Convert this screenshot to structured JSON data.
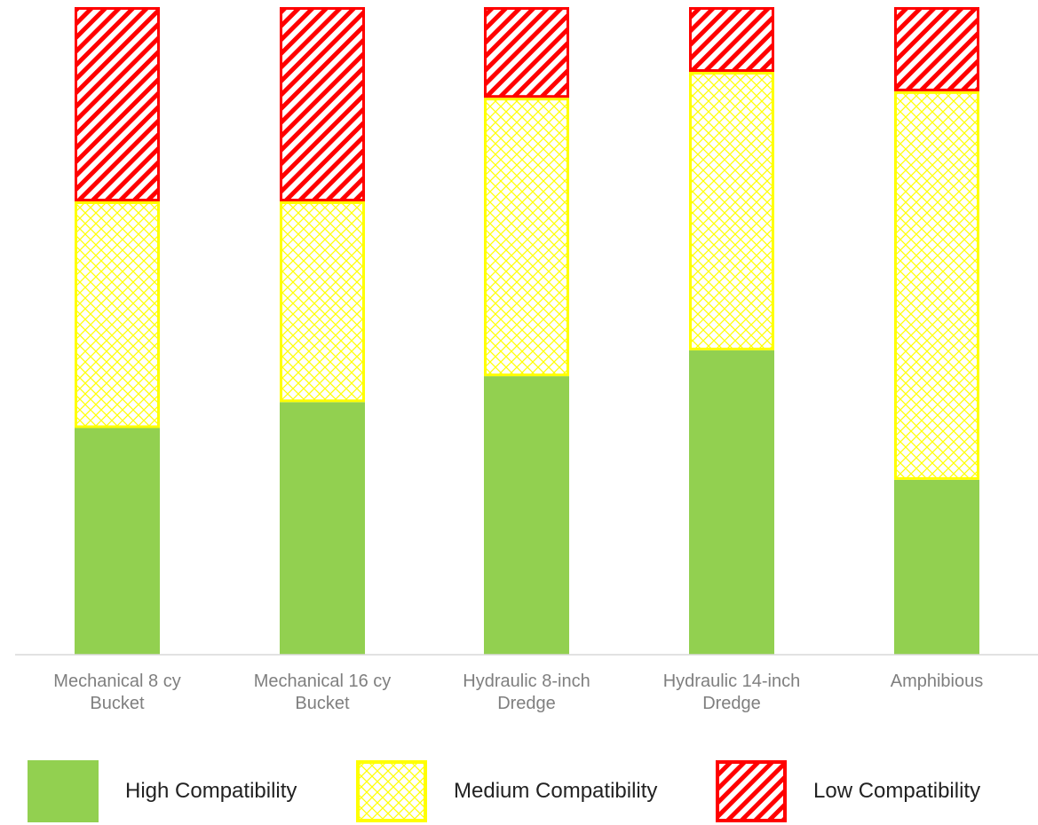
{
  "chart_data": {
    "type": "bar",
    "stacked": true,
    "normalized": true,
    "categories": [
      "Mechanical 8 cy\nBucket",
      "Mechanical 16 cy\nBucket",
      "Hydraulic 8-inch\nDredge",
      "Hydraulic 14-inch\nDredge",
      "Amphibious"
    ],
    "series": [
      {
        "name": "High Compatibility",
        "color": "#92d050",
        "pattern": "solid",
        "values": [
          35,
          39,
          43,
          47,
          27
        ]
      },
      {
        "name": "Medium Compatibility",
        "color": "#ffff00",
        "pattern": "diagonal-cross-hatch",
        "values": [
          35,
          31,
          43,
          43,
          60
        ]
      },
      {
        "name": "Low Compatibility",
        "color": "#ff0000",
        "pattern": "diagonal-stripes",
        "values": [
          30,
          30,
          14,
          10,
          13
        ]
      }
    ],
    "ylim": [
      0,
      100
    ],
    "grid": false,
    "y_axis_visible": false,
    "legend_position": "bottom"
  }
}
